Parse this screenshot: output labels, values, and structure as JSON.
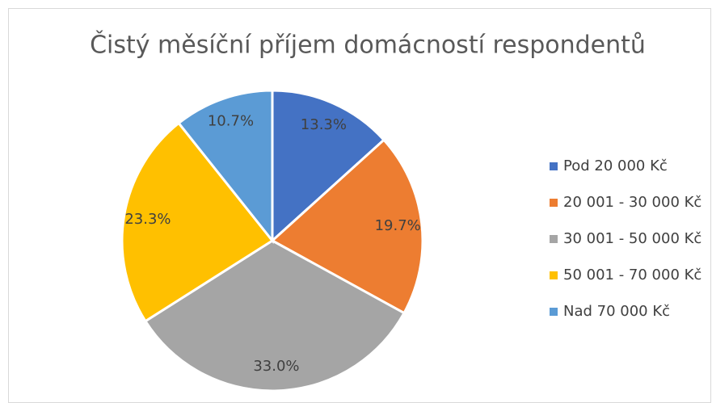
{
  "chart_data": {
    "type": "pie",
    "title": "Čistý měsíční příjem domácností respondentů",
    "categories": [
      "Pod 20 000 Kč",
      "20 001 - 30 000 Kč",
      "30 001 - 50 000 Kč",
      "50 001 - 70 000 Kč",
      "Nad 70 000 Kč"
    ],
    "values": [
      13.3,
      19.7,
      33.0,
      23.3,
      10.7
    ],
    "value_labels": [
      "13.3%",
      "19.7%",
      "33.0%",
      "23.3%",
      "10.7%"
    ],
    "colors": [
      "#4472c4",
      "#ed7d31",
      "#a5a5a5",
      "#ffc000",
      "#5b9bd5"
    ],
    "legend": "right"
  }
}
